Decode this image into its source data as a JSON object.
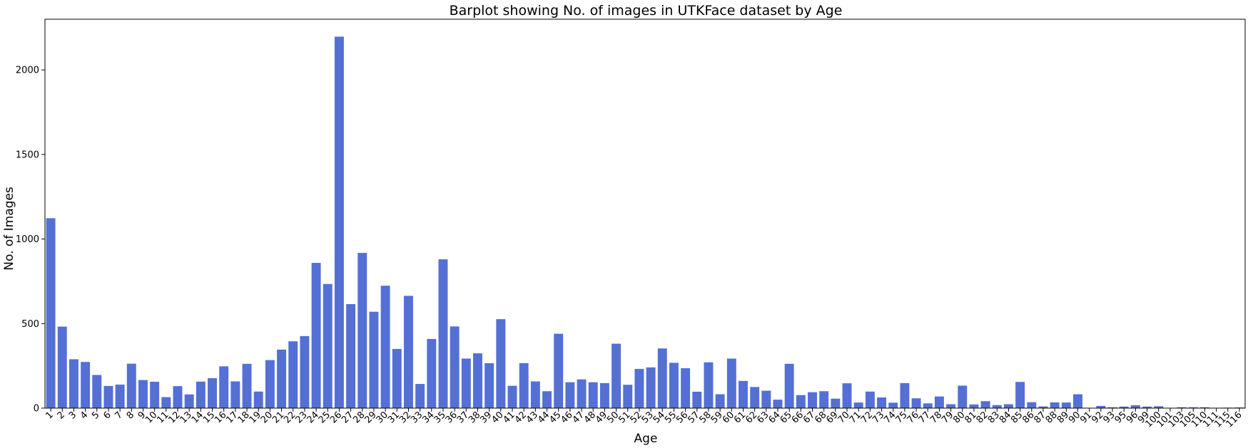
{
  "chart_data": {
    "type": "bar",
    "title": "Barplot showing No. of images in UTKFace dataset by Age",
    "xlabel": "Age",
    "ylabel": "No. of Images",
    "ylim": [
      0,
      2300
    ],
    "yticks": [
      0,
      500,
      1000,
      1500,
      2000
    ],
    "grid": false,
    "bar_color": "#5470d5",
    "categories": [
      "1",
      "2",
      "3",
      "4",
      "5",
      "6",
      "7",
      "8",
      "9",
      "10",
      "11",
      "12",
      "13",
      "14",
      "15",
      "16",
      "17",
      "18",
      "19",
      "20",
      "21",
      "22",
      "23",
      "24",
      "25",
      "26",
      "27",
      "28",
      "29",
      "30",
      "31",
      "32",
      "33",
      "34",
      "35",
      "36",
      "37",
      "38",
      "39",
      "40",
      "41",
      "42",
      "43",
      "44",
      "45",
      "46",
      "47",
      "48",
      "49",
      "50",
      "51",
      "52",
      "53",
      "54",
      "55",
      "56",
      "57",
      "58",
      "59",
      "60",
      "61",
      "62",
      "63",
      "64",
      "65",
      "66",
      "67",
      "68",
      "69",
      "70",
      "71",
      "72",
      "73",
      "74",
      "75",
      "76",
      "77",
      "78",
      "79",
      "80",
      "81",
      "82",
      "83",
      "84",
      "85",
      "86",
      "87",
      "88",
      "89",
      "90",
      "91",
      "92",
      "93",
      "95",
      "96",
      "99",
      "100",
      "101",
      "103",
      "105",
      "110",
      "111",
      "115",
      "116"
    ],
    "values": [
      1123,
      482,
      289,
      273,
      196,
      131,
      139,
      263,
      166,
      156,
      65,
      130,
      81,
      157,
      177,
      247,
      158,
      262,
      98,
      284,
      346,
      395,
      426,
      859,
      734,
      2197,
      615,
      918,
      570,
      724,
      350,
      664,
      143,
      409,
      880,
      483,
      293,
      324,
      266,
      526,
      132,
      266,
      158,
      100,
      440,
      153,
      170,
      153,
      148,
      381,
      138,
      232,
      241,
      353,
      268,
      236,
      97,
      271,
      82,
      293,
      161,
      125,
      103,
      50,
      262,
      77,
      94,
      100,
      56,
      147,
      33,
      98,
      63,
      32,
      148,
      58,
      28,
      69,
      23,
      133,
      22,
      41,
      18,
      23,
      155,
      35,
      10,
      34,
      33,
      82,
      2,
      13,
      5,
      9,
      17,
      9,
      11,
      2,
      5,
      5,
      5,
      2,
      3,
      4
    ]
  }
}
